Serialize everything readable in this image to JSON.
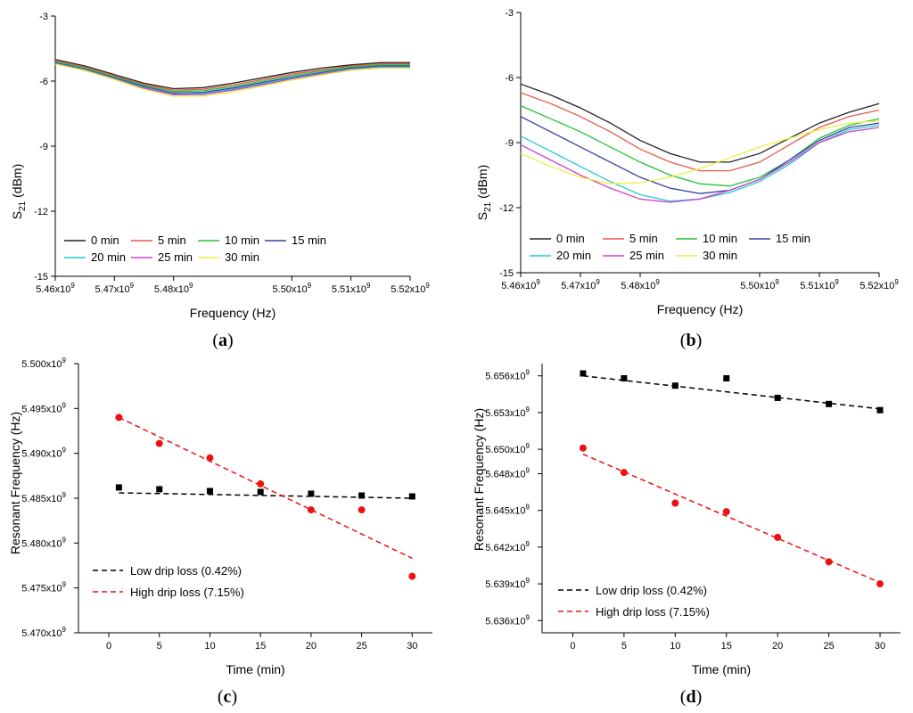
{
  "chart_data": [
    {
      "id": "a",
      "panel_label": "a",
      "type": "line",
      "xlabel": "Frequency (Hz)",
      "ylabel": "S21 (dBm)",
      "ylabel_main": "S",
      "ylabel_sub": "21",
      "ylabel_tail": " (dBm)",
      "xlim": [
        5.46,
        5.52
      ],
      "ylim": [
        -15,
        -3
      ],
      "xtick_values": [
        5.46,
        5.47,
        5.48,
        5.5,
        5.51,
        5.52
      ],
      "xtick_labels": [
        "5.46x10",
        "5.47x10",
        "5.48x10",
        "5.50x10",
        "5.51x10",
        "5.52x10"
      ],
      "xtick_exponent": "9",
      "ytick_values": [
        -3,
        -6,
        -9,
        -12,
        -15
      ],
      "ytick_labels": [
        "-3",
        "-6",
        "-9",
        "-12",
        "-15"
      ],
      "x": [
        5.46,
        5.465,
        5.47,
        5.475,
        5.48,
        5.485,
        5.49,
        5.495,
        5.5,
        5.505,
        5.51,
        5.515,
        5.52
      ],
      "series": [
        {
          "name": "0 min",
          "color": "#222222",
          "values": [
            -5.0,
            -5.3,
            -5.7,
            -6.1,
            -6.35,
            -6.3,
            -6.1,
            -5.85,
            -5.6,
            -5.4,
            -5.25,
            -5.15,
            -5.15
          ]
        },
        {
          "name": "5 min",
          "color": "#e8584f",
          "values": [
            -5.05,
            -5.35,
            -5.75,
            -6.15,
            -6.42,
            -6.38,
            -6.18,
            -5.93,
            -5.68,
            -5.48,
            -5.3,
            -5.2,
            -5.2
          ]
        },
        {
          "name": "10 min",
          "color": "#22c334",
          "values": [
            -5.1,
            -5.4,
            -5.8,
            -6.2,
            -6.48,
            -6.45,
            -6.25,
            -6.0,
            -5.75,
            -5.53,
            -5.35,
            -5.25,
            -5.25
          ]
        },
        {
          "name": "15 min",
          "color": "#3c3ca8",
          "values": [
            -5.15,
            -5.45,
            -5.85,
            -6.25,
            -6.55,
            -6.52,
            -6.32,
            -6.07,
            -5.82,
            -5.6,
            -5.4,
            -5.3,
            -5.3
          ]
        },
        {
          "name": "20 min",
          "color": "#22cccc",
          "values": [
            -5.18,
            -5.48,
            -5.88,
            -6.3,
            -6.6,
            -6.58,
            -6.38,
            -6.13,
            -5.87,
            -5.65,
            -5.45,
            -5.35,
            -5.35
          ]
        },
        {
          "name": "25 min",
          "color": "#cc44cc",
          "values": [
            -5.2,
            -5.5,
            -5.9,
            -6.33,
            -6.63,
            -6.62,
            -6.42,
            -6.17,
            -5.9,
            -5.68,
            -5.48,
            -5.38,
            -5.38
          ]
        },
        {
          "name": "30 min",
          "color": "#eeee44",
          "values": [
            -5.22,
            -5.52,
            -5.93,
            -6.38,
            -6.7,
            -6.7,
            -6.5,
            -6.23,
            -5.95,
            -5.72,
            -5.5,
            -5.4,
            -5.4
          ]
        }
      ]
    },
    {
      "id": "b",
      "panel_label": "b",
      "type": "line",
      "xlabel": "Frequency (Hz)",
      "ylabel": "S21 (dBm)",
      "ylabel_main": "S",
      "ylabel_sub": "21",
      "ylabel_tail": " (dBm)",
      "xlim": [
        5.46,
        5.52
      ],
      "ylim": [
        -15,
        -3
      ],
      "xtick_values": [
        5.46,
        5.47,
        5.48,
        5.5,
        5.51,
        5.52
      ],
      "xtick_labels": [
        "5.46x10",
        "5.47x10",
        "5.48x10",
        "5.50x10",
        "5.51x10",
        "5.52x10"
      ],
      "xtick_exponent": "9",
      "ytick_values": [
        -3,
        -6,
        -9,
        -12,
        -15
      ],
      "ytick_labels": [
        "-3",
        "-6",
        "-9",
        "-12",
        "-15"
      ],
      "x": [
        5.46,
        5.465,
        5.47,
        5.475,
        5.48,
        5.485,
        5.49,
        5.495,
        5.5,
        5.505,
        5.51,
        5.515,
        5.52
      ],
      "series": [
        {
          "name": "0 min",
          "color": "#222222",
          "values": [
            -6.3,
            -6.8,
            -7.4,
            -8.1,
            -8.9,
            -9.5,
            -9.9,
            -9.9,
            -9.5,
            -8.8,
            -8.1,
            -7.6,
            -7.2
          ]
        },
        {
          "name": "5 min",
          "color": "#e8584f",
          "values": [
            -6.7,
            -7.2,
            -7.8,
            -8.5,
            -9.3,
            -9.9,
            -10.3,
            -10.3,
            -9.9,
            -9.1,
            -8.3,
            -7.8,
            -7.5
          ]
        },
        {
          "name": "10 min",
          "color": "#22c334",
          "values": [
            -7.3,
            -7.9,
            -8.5,
            -9.2,
            -9.9,
            -10.5,
            -10.9,
            -11.0,
            -10.6,
            -9.8,
            -8.8,
            -8.2,
            -7.9
          ]
        },
        {
          "name": "15 min",
          "color": "#3c3ca8",
          "values": [
            -7.8,
            -8.5,
            -9.2,
            -9.9,
            -10.6,
            -11.1,
            -11.35,
            -11.2,
            -10.7,
            -9.8,
            -8.9,
            -8.3,
            -8.1
          ]
        },
        {
          "name": "20 min",
          "color": "#22cccc",
          "values": [
            -8.7,
            -9.4,
            -10.1,
            -10.8,
            -11.4,
            -11.7,
            -11.6,
            -11.3,
            -10.8,
            -10.0,
            -9.0,
            -8.4,
            -8.2
          ]
        },
        {
          "name": "25 min",
          "color": "#cc44cc",
          "values": [
            -9.1,
            -9.8,
            -10.5,
            -11.1,
            -11.6,
            -11.75,
            -11.6,
            -11.2,
            -10.7,
            -9.9,
            -9.0,
            -8.5,
            -8.3
          ]
        },
        {
          "name": "30 min",
          "color": "#eeee44",
          "values": [
            -9.5,
            -10.1,
            -10.6,
            -10.9,
            -10.85,
            -10.6,
            -10.2,
            -9.7,
            -9.2,
            -8.8,
            -8.4,
            -8.1,
            -8.0
          ]
        }
      ]
    },
    {
      "id": "c",
      "panel_label": "c",
      "type": "scatter",
      "xlabel": "Time (min)",
      "ylabel": "Resonant Frequency (Hz)",
      "xlim": [
        -3,
        32
      ],
      "ylim": [
        5.47,
        5.5
      ],
      "xtick_values": [
        0,
        5,
        10,
        15,
        20,
        25,
        30
      ],
      "xtick_labels": [
        "0",
        "5",
        "10",
        "15",
        "20",
        "25",
        "30"
      ],
      "ytick_values": [
        5.47,
        5.475,
        5.48,
        5.485,
        5.49,
        5.495,
        5.5
      ],
      "ytick_labels": [
        "5.470x10",
        "5.475x10",
        "5.480x10",
        "5.485x10",
        "5.490x10",
        "5.495x10",
        "5.500x10"
      ],
      "ytick_exponent": "9",
      "series": [
        {
          "name": "Low drip loss (0.42%)",
          "color": "#000000",
          "marker": "square",
          "x": [
            1,
            5,
            10,
            15,
            20,
            25,
            30
          ],
          "values": [
            5.4862,
            5.486,
            5.4858,
            5.4857,
            5.4855,
            5.4853,
            5.4852
          ],
          "fit": [
            5.4856,
            5.485
          ]
        },
        {
          "name": "High drip loss (7.15%)",
          "color": "#ee1111",
          "marker": "circle",
          "x": [
            1,
            5,
            10,
            15,
            20,
            25,
            30
          ],
          "values": [
            5.494,
            5.4911,
            5.4895,
            5.4866,
            5.4837,
            5.4837,
            5.4763
          ],
          "fit": [
            5.494,
            5.4783
          ]
        }
      ]
    },
    {
      "id": "d",
      "panel_label": "d",
      "type": "scatter",
      "xlabel": "Time (min)",
      "ylabel": "Resonant Frequency (Hz)",
      "xlim": [
        -3,
        32
      ],
      "ylim": [
        5.635,
        5.657
      ],
      "xtick_values": [
        0,
        5,
        10,
        15,
        20,
        25,
        30
      ],
      "xtick_labels": [
        "0",
        "5",
        "10",
        "15",
        "20",
        "25",
        "30"
      ],
      "ytick_values": [
        5.636,
        5.639,
        5.642,
        5.645,
        5.648,
        5.65,
        5.653,
        5.656
      ],
      "ytick_labels": [
        "5.636x10",
        "5.639x10",
        "5.642x10",
        "5.645x10",
        "5.648x10",
        "5.650x10",
        "5.653x10",
        "5.656x10"
      ],
      "ytick_exponent": "9",
      "series": [
        {
          "name": "Low drip loss (0.42%)",
          "color": "#000000",
          "marker": "square",
          "x": [
            1,
            5,
            10,
            15,
            20,
            25,
            30
          ],
          "values": [
            5.6562,
            5.6558,
            5.6552,
            5.6558,
            5.6542,
            5.6537,
            5.6532
          ],
          "fit": [
            5.656,
            5.6533
          ]
        },
        {
          "name": "High drip loss (7.15%)",
          "color": "#ee1111",
          "marker": "circle",
          "x": [
            1,
            5,
            10,
            15,
            20,
            25,
            30
          ],
          "values": [
            5.6501,
            5.6481,
            5.6456,
            5.6449,
            5.6428,
            5.6408,
            5.639
          ],
          "fit": [
            5.6496,
            5.6391
          ]
        }
      ]
    }
  ]
}
